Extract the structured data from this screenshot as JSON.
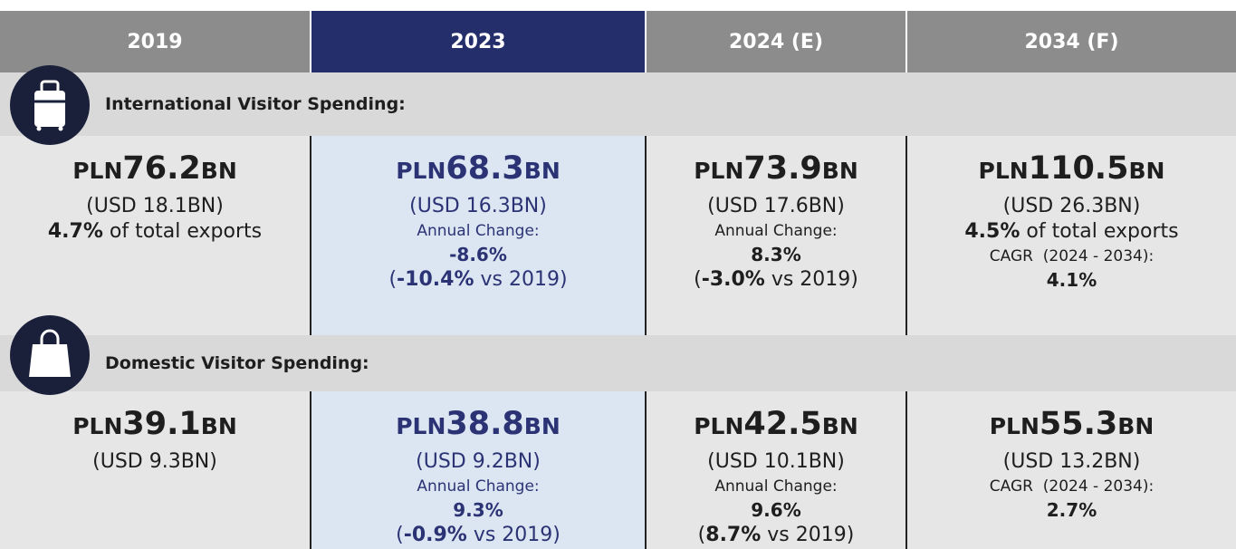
{
  "header": {
    "columns": [
      "2019",
      "2023",
      "2024 (E)",
      "2034 (F)"
    ],
    "highlight_column": 1
  },
  "sections": [
    {
      "title": "International Visitor Spending:",
      "cells": [
        {
          "prefix": "PLN",
          "amount": "76.2",
          "suffix": "BN",
          "lines": [
            {
              "style": "sub",
              "parts": [
                {
                  "text": "(USD 18.1BN)"
                }
              ]
            },
            {
              "style": "sub",
              "parts": [
                {
                  "text": "4.7%",
                  "bold": true
                },
                {
                  "text": " of total exports"
                }
              ]
            }
          ]
        },
        {
          "prefix": "PLN",
          "amount": "68.3",
          "suffix": "BN",
          "lines": [
            {
              "style": "sub",
              "parts": [
                {
                  "text": "(USD 16.3BN)"
                }
              ]
            },
            {
              "style": "note",
              "parts": [
                {
                  "text": "Annual Change:"
                }
              ]
            },
            {
              "style": "figure",
              "parts": [
                {
                  "text": "-8.6%",
                  "bold": true
                }
              ]
            },
            {
              "style": "sub",
              "parts": [
                {
                  "text": "("
                },
                {
                  "text": "-10.4%",
                  "bold": true
                },
                {
                  "text": " vs 2019)"
                }
              ]
            }
          ]
        },
        {
          "prefix": "PLN",
          "amount": "73.9",
          "suffix": "BN",
          "lines": [
            {
              "style": "sub",
              "parts": [
                {
                  "text": "(USD 17.6BN)"
                }
              ]
            },
            {
              "style": "note",
              "parts": [
                {
                  "text": "Annual Change:"
                }
              ]
            },
            {
              "style": "figure",
              "parts": [
                {
                  "text": "8.3%",
                  "bold": true
                }
              ]
            },
            {
              "style": "sub",
              "parts": [
                {
                  "text": "("
                },
                {
                  "text": "-3.0%",
                  "bold": true
                },
                {
                  "text": " vs 2019)"
                }
              ]
            }
          ]
        },
        {
          "prefix": "PLN",
          "amount": "110.5",
          "suffix": "BN",
          "lines": [
            {
              "style": "sub",
              "parts": [
                {
                  "text": "(USD 26.3BN)"
                }
              ]
            },
            {
              "style": "sub",
              "parts": [
                {
                  "text": "4.5%",
                  "bold": true
                },
                {
                  "text": " of total exports"
                }
              ]
            },
            {
              "style": "note",
              "parts": [
                {
                  "text": "CAGR  (2024 - 2034):"
                }
              ]
            },
            {
              "style": "figure",
              "parts": [
                {
                  "text": "4.1%",
                  "bold": true
                }
              ]
            }
          ]
        }
      ]
    },
    {
      "title": "Domestic Visitor Spending:",
      "cells": [
        {
          "prefix": "PLN",
          "amount": "39.1",
          "suffix": "BN",
          "lines": [
            {
              "style": "sub",
              "parts": [
                {
                  "text": "(USD 9.3BN)"
                }
              ]
            }
          ]
        },
        {
          "prefix": "PLN",
          "amount": "38.8",
          "suffix": "BN",
          "lines": [
            {
              "style": "sub",
              "parts": [
                {
                  "text": "(USD 9.2BN)"
                }
              ]
            },
            {
              "style": "note",
              "parts": [
                {
                  "text": "Annual Change:"
                }
              ]
            },
            {
              "style": "figure",
              "parts": [
                {
                  "text": "9.3%",
                  "bold": true
                }
              ]
            },
            {
              "style": "sub",
              "parts": [
                {
                  "text": "("
                },
                {
                  "text": "-0.9%",
                  "bold": true
                },
                {
                  "text": " vs 2019)"
                }
              ]
            }
          ]
        },
        {
          "prefix": "PLN",
          "amount": "42.5",
          "suffix": "BN",
          "lines": [
            {
              "style": "sub",
              "parts": [
                {
                  "text": "(USD 10.1BN)"
                }
              ]
            },
            {
              "style": "note",
              "parts": [
                {
                  "text": "Annual Change:"
                }
              ]
            },
            {
              "style": "figure",
              "parts": [
                {
                  "text": "9.6%",
                  "bold": true
                }
              ]
            },
            {
              "style": "sub",
              "parts": [
                {
                  "text": "("
                },
                {
                  "text": "8.7%",
                  "bold": true
                },
                {
                  "text": " vs 2019)"
                }
              ]
            }
          ]
        },
        {
          "prefix": "PLN",
          "amount": "55.3",
          "suffix": "BN",
          "lines": [
            {
              "style": "sub",
              "parts": [
                {
                  "text": "(USD 13.2BN)"
                }
              ]
            },
            {
              "style": "note",
              "parts": [
                {
                  "text": "CAGR  (2024 - 2034):"
                }
              ]
            },
            {
              "style": "figure",
              "parts": [
                {
                  "text": "2.7%",
                  "bold": true
                }
              ]
            }
          ]
        }
      ]
    }
  ]
}
